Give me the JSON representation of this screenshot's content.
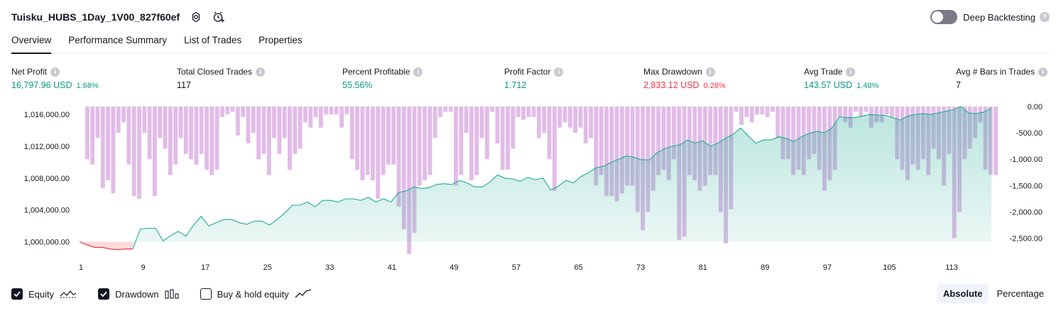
{
  "header": {
    "strategy_title": "Tuisku_HUBS_1Day_1V00_827f60ef",
    "deep_backtesting_label": "Deep Backtesting",
    "help_glyph": "?"
  },
  "tabs": [
    {
      "label": "Overview",
      "active": true
    },
    {
      "label": "Performance Summary",
      "active": false
    },
    {
      "label": "List of Trades",
      "active": false
    },
    {
      "label": "Properties",
      "active": false
    }
  ],
  "metrics": [
    {
      "label": "Net Profit",
      "value": "16,797.96 USD",
      "pct": "1.68%",
      "color": "green"
    },
    {
      "label": "Total Closed Trades",
      "value": "117",
      "pct": "",
      "color": "dark"
    },
    {
      "label": "Percent Profitable",
      "value": "55.56%",
      "pct": "",
      "color": "green"
    },
    {
      "label": "Profit Factor",
      "value": "1.712",
      "pct": "",
      "color": "green"
    },
    {
      "label": "Max Drawdown",
      "value": "2,833.12 USD",
      "pct": "0.28%",
      "color": "red"
    },
    {
      "label": "Avg Trade",
      "value": "143.57 USD",
      "pct": "1.48%",
      "color": "green"
    },
    {
      "label": "Avg # Bars in Trades",
      "value": "7",
      "pct": "",
      "color": "dark"
    }
  ],
  "chart_data": {
    "type": "line",
    "colors": {
      "equity_line": "#22ab94",
      "equity_fill": "#22ab94",
      "loss_line": "#f23645",
      "drawdown_bar": "#ce93d8"
    },
    "x_ticks": [
      "1",
      "9",
      "17",
      "25",
      "33",
      "41",
      "49",
      "57",
      "65",
      "73",
      "81",
      "89",
      "97",
      "105",
      "113"
    ],
    "left_axis": {
      "ticks": [
        "1,016,000.00",
        "1,012,000.00",
        "1,008,000.00",
        "1,004,000.00",
        "1,000,000.00"
      ],
      "range": [
        999600,
        1017000
      ]
    },
    "right_axis": {
      "ticks": [
        "0.00",
        "-500.00",
        "-1,000.00",
        "-1,500.00",
        "-2,000.00",
        "-2,500.00"
      ],
      "range": [
        -2830,
        0
      ]
    },
    "equity": [
      1000000,
      999600,
      999300,
      999300,
      999100,
      999000,
      999100,
      999100,
      1001600,
      1001700,
      1001700,
      1000100,
      1000800,
      1001300,
      1000700,
      1002100,
      1003200,
      1002000,
      1002400,
      1002800,
      1002800,
      1002400,
      1002200,
      1002600,
      1002600,
      1002100,
      1002800,
      1003600,
      1004600,
      1004600,
      1005000,
      1004400,
      1005200,
      1005200,
      1005000,
      1005400,
      1005400,
      1005200,
      1005600,
      1005000,
      1005400,
      1005000,
      1006200,
      1006400,
      1006900,
      1006700,
      1006800,
      1007200,
      1007300,
      1007200,
      1007700,
      1007400,
      1006900,
      1006900,
      1007500,
      1008400,
      1008000,
      1007900,
      1007600,
      1008100,
      1007800,
      1008000,
      1006500,
      1007000,
      1007700,
      1007400,
      1008200,
      1008700,
      1009300,
      1009500,
      1010000,
      1010400,
      1010800,
      1010600,
      1010300,
      1010300,
      1011200,
      1011700,
      1012000,
      1012200,
      1012800,
      1012400,
      1012700,
      1012000,
      1012400,
      1013000,
      1013500,
      1014300,
      1013300,
      1012400,
      1012800,
      1012800,
      1013200,
      1013000,
      1012600,
      1013200,
      1013600,
      1013900,
      1013700,
      1014300,
      1015700,
      1015600,
      1015600,
      1015800,
      1016000,
      1015900,
      1015900,
      1015600,
      1015300,
      1015800,
      1016000,
      1016100,
      1016000,
      1016200,
      1016400,
      1016600,
      1017000,
      1016200,
      1016100,
      1016300,
      1016800
    ],
    "drawdown": [
      0,
      -1000,
      -1100,
      -600,
      -1550,
      -1400,
      -1650,
      -500,
      -300,
      -1100,
      -1700,
      -1750,
      -500,
      -1000,
      -1700,
      -600,
      -800,
      -1300,
      -1100,
      -600,
      -900,
      -1000,
      -1100,
      -900,
      -1200,
      -1300,
      -1200,
      -200,
      -150,
      -100,
      -550,
      -200,
      -700,
      -500,
      -1000,
      -900,
      -1300,
      -600,
      -900,
      -600,
      -1200,
      -900,
      -800,
      -300,
      -400,
      -200,
      -400,
      -150,
      -150,
      -150,
      -400,
      -150,
      -1000,
      -1200,
      -1400,
      -1300,
      -1400,
      -1750,
      -1300,
      -1100,
      -1100,
      -1900,
      -2330,
      -2800,
      -2400,
      -1500,
      -1400,
      -1300,
      -600,
      -200,
      -100,
      -100,
      -1500,
      -1300,
      -500,
      -1400,
      -1300,
      -600,
      -1000,
      -100,
      -700,
      -1200,
      -1200,
      -800,
      -200,
      -250,
      -200,
      -200,
      -600,
      -500,
      -1000,
      -1600,
      -400,
      -300,
      -400,
      -500,
      -400,
      -700,
      -600,
      -1500,
      -1300,
      -1700,
      -1700,
      -1800,
      -1650,
      -1500,
      -1500,
      -2000,
      -2350,
      -2000,
      -1600,
      -1300,
      -1200,
      -1400,
      -1000,
      -2530,
      -2470,
      -1300,
      -1400,
      -1600,
      -1500,
      -1300,
      -1300,
      -2000,
      -2600,
      -1950,
      -100,
      -350,
      -200,
      -300,
      -150,
      -150,
      -200,
      -100,
      -600,
      -1000,
      -1000,
      -1300,
      -1200,
      -1300,
      -1000,
      -900,
      -1200,
      -1600,
      -1400,
      -1200,
      -200,
      -300,
      -400,
      -100,
      -200,
      -100,
      -400,
      -300,
      -300,
      -150,
      -200,
      -1000,
      -1200,
      -1400,
      -1100,
      -1200,
      -1000,
      -1300,
      -800,
      -1000,
      -1500,
      -900,
      -2500,
      -2000,
      -1000,
      -800,
      -600,
      -300,
      -1200,
      -1300,
      -1300
    ]
  },
  "legend": [
    {
      "label": "Equity",
      "checked": true,
      "glyph": "equity-line-icon"
    },
    {
      "label": "Drawdown",
      "checked": true,
      "glyph": "drawdown-bars-icon"
    },
    {
      "label": "Buy & hold equity",
      "checked": false,
      "glyph": "buy-hold-line-icon"
    }
  ],
  "mode": {
    "absolute_label": "Absolute",
    "percentage_label": "Percentage",
    "selected": "Absolute"
  }
}
